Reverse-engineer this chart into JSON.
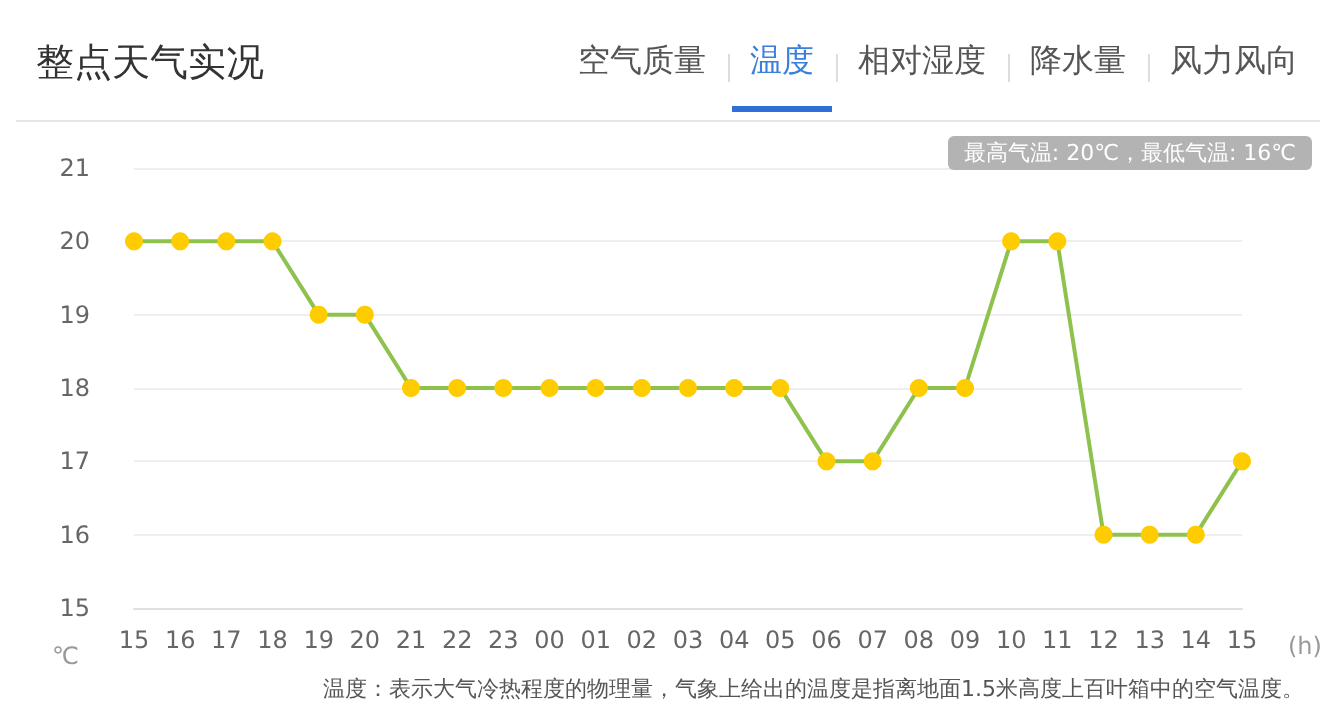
{
  "chart_data": {
    "type": "line",
    "title": "整点天气实况",
    "xlabel": "(h)",
    "ylabel": "℃",
    "annotations": [
      "空气质量",
      "温度",
      "相对湿度",
      "降水量",
      "风力风向",
      "最高气温: 20℃，最低气温: 16℃",
      "温度：表示大气冷热程度的物理量，气象上给出的温度是指离地面1.5米高度上百叶箱中的空气温度。"
    ],
    "categories": [
      "15",
      "16",
      "17",
      "18",
      "19",
      "20",
      "21",
      "22",
      "23",
      "00",
      "01",
      "02",
      "03",
      "04",
      "05",
      "06",
      "07",
      "08",
      "09",
      "10",
      "11",
      "12",
      "13",
      "14",
      "15"
    ],
    "series": [
      {
        "color": "#8fc14d",
        "colors": [
          "#ffcc00",
          "#ffcc00",
          "#ffcc00",
          "#ffcc00",
          "#ffcc00",
          "#ffcc00",
          "#ffcc00",
          "#ffcc00",
          "#ffcc00",
          "#ffcc00",
          "#ffcc00",
          "#ffcc00",
          "#ffcc00",
          "#ffcc00",
          "#ffcc00",
          "#ffcc00",
          "#ffcc00",
          "#ffcc00",
          "#ffcc00",
          "#ffcc00",
          "#ffcc00",
          "#ffcc00",
          "#ffcc00",
          "#ffcc00",
          "#ffcc00"
        ],
        "values": [
          20,
          20,
          20,
          20,
          19,
          19,
          18,
          18,
          18,
          18,
          18,
          18,
          18,
          18,
          18,
          17,
          17,
          18,
          18,
          20,
          20,
          16,
          16,
          16,
          17
        ]
      }
    ],
    "ylim": [
      15,
      21
    ],
    "yticks": [
      15,
      16,
      17,
      18,
      19,
      20,
      21
    ],
    "grid": "y",
    "marker": "circle",
    "line_style": "solid"
  }
}
